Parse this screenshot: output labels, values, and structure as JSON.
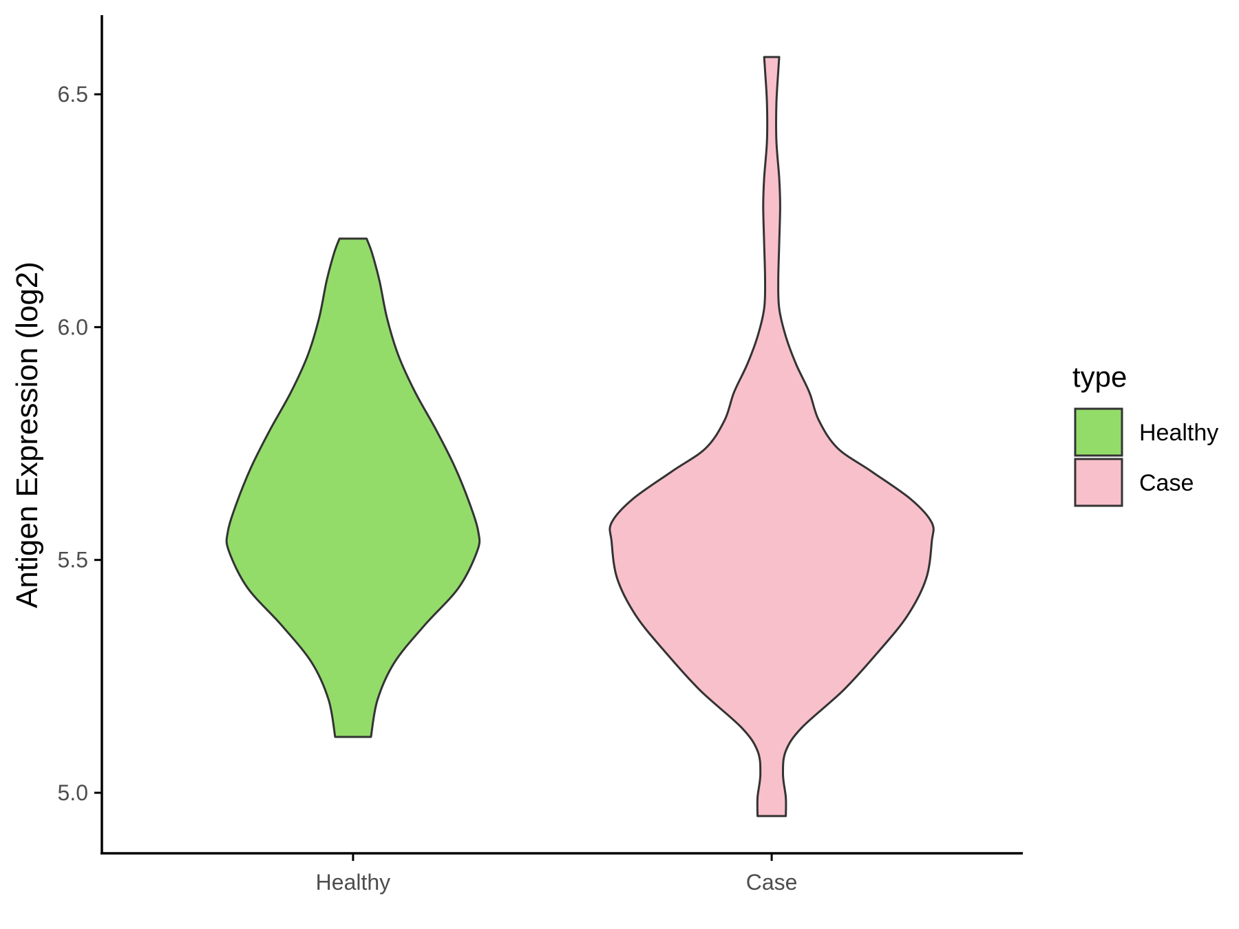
{
  "chart_data": {
    "type": "violin",
    "title": "",
    "xlabel": "",
    "ylabel": "Antigen Expression (log2)",
    "ylim": [
      4.87,
      6.67
    ],
    "y_ticks": [
      "5.0",
      "5.5",
      "6.0",
      "6.5"
    ],
    "y_tick_values": [
      5.0,
      5.5,
      6.0,
      6.5
    ],
    "categories": [
      "Healthy",
      "Case"
    ],
    "grid": false,
    "legend": {
      "title": "type",
      "placement": "right",
      "entries": [
        "Healthy",
        "Case"
      ]
    },
    "colors": {
      "Healthy": "#93DC6A",
      "Case": "#F8C0CB",
      "outline": "#333333",
      "axis": "#000000"
    },
    "series": [
      {
        "name": "Healthy",
        "min": 5.12,
        "max": 6.19,
        "density_profile": [
          [
            5.12,
            0.095
          ],
          [
            5.2,
            0.13
          ],
          [
            5.28,
            0.22
          ],
          [
            5.36,
            0.38
          ],
          [
            5.44,
            0.56
          ],
          [
            5.52,
            0.66
          ],
          [
            5.56,
            0.665
          ],
          [
            5.62,
            0.62
          ],
          [
            5.7,
            0.54
          ],
          [
            5.78,
            0.44
          ],
          [
            5.86,
            0.33
          ],
          [
            5.94,
            0.24
          ],
          [
            6.02,
            0.18
          ],
          [
            6.1,
            0.14
          ],
          [
            6.16,
            0.1
          ],
          [
            6.19,
            0.072
          ]
        ]
      },
      {
        "name": "Case",
        "min": 4.95,
        "max": 6.58,
        "density_profile": [
          [
            4.95,
            0.075
          ],
          [
            4.99,
            0.075
          ],
          [
            5.04,
            0.06
          ],
          [
            5.09,
            0.075
          ],
          [
            5.14,
            0.16
          ],
          [
            5.22,
            0.38
          ],
          [
            5.3,
            0.56
          ],
          [
            5.38,
            0.72
          ],
          [
            5.46,
            0.82
          ],
          [
            5.54,
            0.85
          ],
          [
            5.58,
            0.85
          ],
          [
            5.63,
            0.74
          ],
          [
            5.69,
            0.53
          ],
          [
            5.74,
            0.35
          ],
          [
            5.8,
            0.25
          ],
          [
            5.86,
            0.2
          ],
          [
            5.92,
            0.13
          ],
          [
            5.98,
            0.075
          ],
          [
            6.04,
            0.04
          ],
          [
            6.1,
            0.035
          ],
          [
            6.18,
            0.04
          ],
          [
            6.26,
            0.045
          ],
          [
            6.32,
            0.04
          ],
          [
            6.4,
            0.025
          ],
          [
            6.48,
            0.025
          ],
          [
            6.55,
            0.035
          ],
          [
            6.58,
            0.04
          ]
        ]
      }
    ]
  }
}
